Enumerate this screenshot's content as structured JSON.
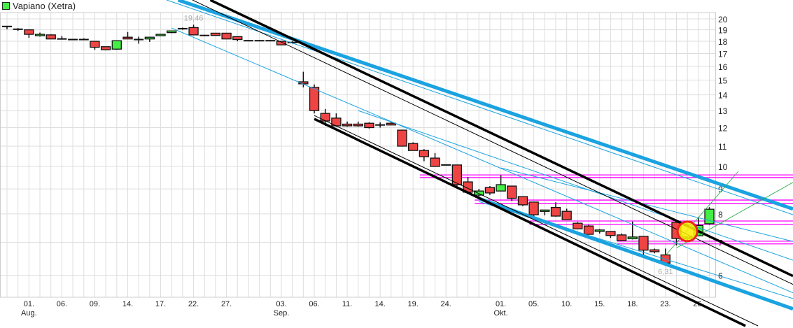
{
  "chart_data": {
    "type": "candlestick",
    "title": "Vapiano (Xetra)",
    "legend": {
      "label": "Vapiano (Xetra)",
      "color": "#44ee44",
      "position": "top-left"
    },
    "y_scale": "log",
    "ylim": [
      5.3,
      20.6
    ],
    "y_ticks": [
      6,
      7,
      8,
      9,
      10,
      11,
      12,
      13,
      14,
      15,
      16,
      17,
      18,
      19,
      20
    ],
    "grid": true,
    "colors": {
      "up": "#44ee44",
      "down": "#ee4444",
      "trend_blue": "#1aa3e0",
      "trend_black": "#000000",
      "support": "#ff00ff",
      "fan": "#22aa44",
      "marker_fill": "#ffee00",
      "marker_ring": "#ee2222"
    },
    "x_labels": [
      {
        "date": "Aug 01",
        "text": "01.",
        "month": "Aug."
      },
      {
        "date": "Aug 06",
        "text": "06."
      },
      {
        "date": "Aug 09",
        "text": "09."
      },
      {
        "date": "Aug 14",
        "text": "14."
      },
      {
        "date": "Aug 17",
        "text": "17."
      },
      {
        "date": "Aug 22",
        "text": "22."
      },
      {
        "date": "Aug 27",
        "text": "27."
      },
      {
        "date": "Sep 03",
        "text": "03.",
        "month": "Sep."
      },
      {
        "date": "Sep 06",
        "text": "06."
      },
      {
        "date": "Sep 11",
        "text": "11."
      },
      {
        "date": "Sep 14",
        "text": "14."
      },
      {
        "date": "Sep 19",
        "text": "19."
      },
      {
        "date": "Sep 24",
        "text": "24."
      },
      {
        "date": "Oct 01",
        "text": "01.",
        "month": "Okt."
      },
      {
        "date": "Oct 05",
        "text": "05."
      },
      {
        "date": "Oct 10",
        "text": "10."
      },
      {
        "date": "Oct 15",
        "text": "15."
      },
      {
        "date": "Oct 18",
        "text": "18."
      },
      {
        "date": "Oct 23",
        "text": "23."
      },
      {
        "date": "Oct 26",
        "text": "26."
      }
    ],
    "candles": [
      {
        "d": "Jul 30",
        "o": 19.3,
        "h": 19.35,
        "l": 19.05,
        "c": 19.3
      },
      {
        "d": "Jul 31",
        "o": 19.05,
        "h": 19.15,
        "l": 18.9,
        "c": 19.05
      },
      {
        "d": "Aug 01",
        "o": 19.0,
        "h": 19.0,
        "l": 18.3,
        "c": 18.6
      },
      {
        "d": "Aug 02",
        "o": 18.5,
        "h": 18.75,
        "l": 18.4,
        "c": 18.6
      },
      {
        "d": "Aug 03",
        "o": 18.55,
        "h": 18.6,
        "l": 18.2,
        "c": 18.2
      },
      {
        "d": "Aug 06",
        "o": 18.2,
        "h": 18.45,
        "l": 18.2,
        "c": 18.2
      },
      {
        "d": "Aug 07",
        "o": 18.15,
        "h": 18.2,
        "l": 18.1,
        "c": 18.15
      },
      {
        "d": "Aug 08",
        "o": 18.15,
        "h": 18.25,
        "l": 18.1,
        "c": 18.15
      },
      {
        "d": "Aug 09",
        "o": 18.0,
        "h": 18.0,
        "l": 17.3,
        "c": 17.5
      },
      {
        "d": "Aug 10",
        "o": 17.55,
        "h": 17.55,
        "l": 17.25,
        "c": 17.3
      },
      {
        "d": "Aug 13",
        "o": 17.35,
        "h": 18.05,
        "l": 17.3,
        "c": 18.05
      },
      {
        "d": "Aug 14",
        "o": 18.35,
        "h": 18.8,
        "l": 18.2,
        "c": 18.2
      },
      {
        "d": "Aug 15",
        "o": 18.15,
        "h": 18.4,
        "l": 17.8,
        "c": 18.15
      },
      {
        "d": "Aug 16",
        "o": 18.2,
        "h": 18.35,
        "l": 17.95,
        "c": 18.35
      },
      {
        "d": "Aug 17",
        "o": 18.5,
        "h": 18.6,
        "l": 18.45,
        "c": 18.6
      },
      {
        "d": "Aug 20",
        "o": 18.75,
        "h": 18.9,
        "l": 18.7,
        "c": 18.9
      },
      {
        "d": "Aug 21",
        "o": 19.1,
        "h": 19.2,
        "l": 19.0,
        "c": 19.1
      },
      {
        "d": "Aug 22",
        "o": 19.2,
        "h": 19.46,
        "l": 18.55,
        "c": 18.55
      },
      {
        "d": "Aug 23",
        "o": 18.5,
        "h": 18.55,
        "l": 18.45,
        "c": 18.5
      },
      {
        "d": "Aug 24",
        "o": 18.7,
        "h": 18.7,
        "l": 18.5,
        "c": 18.5
      },
      {
        "d": "Aug 27",
        "o": 18.7,
        "h": 18.7,
        "l": 18.2,
        "c": 18.2
      },
      {
        "d": "Aug 28",
        "o": 18.4,
        "h": 18.4,
        "l": 18.0,
        "c": 18.15
      },
      {
        "d": "Aug 29",
        "o": 18.05,
        "h": 18.1,
        "l": 18.0,
        "c": 18.05
      },
      {
        "d": "Aug 30",
        "o": 18.05,
        "h": 18.1,
        "l": 18.0,
        "c": 18.05
      },
      {
        "d": "Aug 31",
        "o": 18.05,
        "h": 18.1,
        "l": 18.0,
        "c": 18.05
      },
      {
        "d": "Sep 03",
        "o": 18.0,
        "h": 18.0,
        "l": 17.7,
        "c": 17.7
      },
      {
        "d": "Sep 04",
        "o": 17.9,
        "h": 18.0,
        "l": 17.8,
        "c": 17.9
      },
      {
        "d": "Sep 05",
        "o": 14.88,
        "h": 15.6,
        "l": 14.5,
        "c": 14.74
      },
      {
        "d": "Sep 06",
        "o": 14.5,
        "h": 14.7,
        "l": 12.83,
        "c": 13.0
      },
      {
        "d": "Sep 07",
        "o": 12.83,
        "h": 13.1,
        "l": 12.1,
        "c": 12.38
      },
      {
        "d": "Sep 10",
        "o": 12.55,
        "h": 12.83,
        "l": 12.05,
        "c": 12.1
      },
      {
        "d": "Sep 11",
        "o": 12.2,
        "h": 12.35,
        "l": 12.05,
        "c": 12.1
      },
      {
        "d": "Sep 12",
        "o": 12.2,
        "h": 12.35,
        "l": 12.05,
        "c": 12.1
      },
      {
        "d": "Sep 13",
        "o": 12.25,
        "h": 12.3,
        "l": 11.95,
        "c": 12.0
      },
      {
        "d": "Sep 14",
        "o": 12.15,
        "h": 12.3,
        "l": 12.0,
        "c": 12.15
      },
      {
        "d": "Sep 17",
        "o": 12.25,
        "h": 12.3,
        "l": 12.15,
        "c": 12.15
      },
      {
        "d": "Sep 18",
        "o": 11.86,
        "h": 11.86,
        "l": 11.0,
        "c": 11.0
      },
      {
        "d": "Sep 19",
        "o": 11.14,
        "h": 11.2,
        "l": 10.78,
        "c": 10.78
      },
      {
        "d": "Sep 20",
        "o": 10.78,
        "h": 10.85,
        "l": 10.25,
        "c": 10.47
      },
      {
        "d": "Sep 21",
        "o": 10.4,
        "h": 10.65,
        "l": 10.0,
        "c": 10.0
      },
      {
        "d": "Sep 24",
        "o": 10.07,
        "h": 10.1,
        "l": 10.05,
        "c": 10.07
      },
      {
        "d": "Sep 25",
        "o": 10.07,
        "h": 10.07,
        "l": 9.06,
        "c": 9.18
      },
      {
        "d": "Sep 26",
        "o": 9.3,
        "h": 9.52,
        "l": 8.86,
        "c": 8.86
      },
      {
        "d": "Sep 27",
        "o": 8.74,
        "h": 9.0,
        "l": 8.65,
        "c": 8.91
      },
      {
        "d": "Sep 28",
        "o": 9.06,
        "h": 9.12,
        "l": 8.75,
        "c": 8.83
      },
      {
        "d": "Oct 01",
        "o": 8.91,
        "h": 9.6,
        "l": 8.91,
        "c": 9.18
      },
      {
        "d": "Oct 02",
        "o": 9.12,
        "h": 9.12,
        "l": 8.5,
        "c": 8.61
      },
      {
        "d": "Oct 04",
        "o": 8.68,
        "h": 8.68,
        "l": 8.3,
        "c": 8.35
      },
      {
        "d": "Oct 05",
        "o": 8.46,
        "h": 8.46,
        "l": 7.9,
        "c": 7.97
      },
      {
        "d": "Oct 08",
        "o": 8.1,
        "h": 8.15,
        "l": 7.95,
        "c": 8.15
      },
      {
        "d": "Oct 09",
        "o": 8.25,
        "h": 8.45,
        "l": 7.9,
        "c": 7.92
      },
      {
        "d": "Oct 10",
        "o": 8.1,
        "h": 8.2,
        "l": 7.79,
        "c": 7.79
      },
      {
        "d": "Oct 11",
        "o": 7.66,
        "h": 7.7,
        "l": 7.46,
        "c": 7.46
      },
      {
        "d": "Oct 12",
        "o": 7.56,
        "h": 7.6,
        "l": 7.27,
        "c": 7.27
      },
      {
        "d": "Oct 15",
        "o": 7.38,
        "h": 7.45,
        "l": 7.3,
        "c": 7.42
      },
      {
        "d": "Oct 16",
        "o": 7.37,
        "h": 7.37,
        "l": 7.15,
        "c": 7.23
      },
      {
        "d": "Oct 17",
        "o": 7.25,
        "h": 7.3,
        "l": 7.06,
        "c": 7.06
      },
      {
        "d": "Oct 18",
        "o": 7.12,
        "h": 7.72,
        "l": 7.1,
        "c": 7.18
      },
      {
        "d": "Oct 19",
        "o": 7.2,
        "h": 7.2,
        "l": 6.6,
        "c": 6.75
      },
      {
        "d": "Oct 22",
        "o": 6.76,
        "h": 6.8,
        "l": 6.65,
        "c": 6.7
      },
      {
        "d": "Oct 23",
        "o": 6.6,
        "h": 6.8,
        "l": 6.31,
        "c": 6.35
      },
      {
        "d": "Oct 24",
        "o": 7.69,
        "h": 7.69,
        "l": 6.9,
        "c": 7.13
      },
      {
        "d": "Oct 25",
        "o": 7.12,
        "h": 7.2,
        "l": 7.05,
        "c": 7.18
      },
      {
        "d": "Oct 26",
        "o": 7.22,
        "h": 7.86,
        "l": 7.2,
        "c": 7.58
      },
      {
        "d": "Oct 29",
        "o": 7.64,
        "h": 8.26,
        "l": 7.6,
        "c": 8.18
      }
    ],
    "annotations": [
      {
        "d": "Aug 22",
        "price": 19.46,
        "text": "19,46",
        "position": "above"
      },
      {
        "d": "Oct 23",
        "price": 6.31,
        "text": "6,31",
        "position": "below"
      }
    ],
    "marker": {
      "d": "Oct 25",
      "price": 7.37
    },
    "trendlines": [
      {
        "kind": "blue-thick",
        "p1": [
          "Aug 21",
          21.7
        ],
        "p2": [
          "Oct 29",
          9.36
        ]
      },
      {
        "kind": "blue-thin",
        "p1": [
          "Aug 21",
          21.3
        ],
        "p2": [
          "Oct 29",
          9.12
        ]
      },
      {
        "kind": "blue-thin",
        "p1": [
          "Aug 20",
          19.16
        ],
        "p2": [
          "Oct 29",
          6.53
        ],
        "start": true
      },
      {
        "kind": "blue-thin",
        "p1": [
          "Sep 12",
          13.0
        ],
        "p2": [
          "Oct 29",
          7.37
        ],
        "start": true
      },
      {
        "kind": "blue-thin",
        "p1": [
          "Oct 01",
          9.93
        ],
        "p2": [
          "Oct 29",
          7.76
        ],
        "start": true
      },
      {
        "kind": "blue-thick",
        "p1": [
          "Sep 27",
          8.6
        ],
        "p2": [
          "Oct 29",
          5.88
        ],
        "start": true
      },
      {
        "kind": "blue-thin",
        "p1": [
          "Sep 27",
          8.48
        ],
        "p2": [
          "Oct 29",
          6.07
        ],
        "start": true
      },
      {
        "kind": "black-thick",
        "p1": [
          "Aug 24",
          21.6
        ],
        "p2": [
          "Oct 29",
          7.2
        ]
      },
      {
        "kind": "black-thin",
        "p1": [
          "Aug 22",
          21.8
        ],
        "p2": [
          "Oct 29",
          6.92
        ]
      },
      {
        "kind": "black-thick",
        "p1": [
          "Sep 06",
          12.5
        ],
        "p2": [
          "Oct 29",
          5.13
        ],
        "start": true
      },
      {
        "kind": "black-thin",
        "p1": [
          "Sep 06",
          12.7
        ],
        "p2": [
          "Oct 29",
          5.27
        ],
        "start": true
      },
      {
        "kind": "fan",
        "p1": [
          "Oct 23",
          6.58
        ],
        "p2": [
          "Oct 29",
          8.35
        ],
        "start": true,
        "to_price": 9.77
      },
      {
        "kind": "fan",
        "p1": [
          "Oct 24",
          6.82
        ],
        "p2": [
          "Oct 29",
          7.44
        ],
        "start": true,
        "to_price": 9.77
      }
    ],
    "levels": [
      {
        "price": 9.61,
        "from": "Sep 20"
      },
      {
        "price": 9.49,
        "from": "Sep 20"
      },
      {
        "price": 8.54,
        "from": "Sep 27"
      },
      {
        "price": 8.4,
        "from": "Sep 27"
      },
      {
        "price": 7.74,
        "from": "Oct 05"
      },
      {
        "price": 7.62,
        "from": "Oct 05"
      },
      {
        "price": 7.04,
        "from": "Oct 17"
      },
      {
        "price": 6.95,
        "from": "Oct 17"
      }
    ]
  }
}
